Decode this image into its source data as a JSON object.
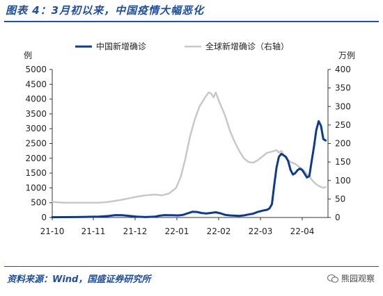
{
  "header": {
    "title": "图表 4：3月初以来，中国疫情大幅恶化"
  },
  "footer": {
    "source": "资料来源：Wind，国盛证券研究所",
    "watermark": "熊园观察"
  },
  "colors": {
    "china": "#0b3a8f",
    "global": "#c8c8c8",
    "accent": "#1f4e9a"
  },
  "chart_data": {
    "type": "line",
    "left_axis": {
      "label": "例",
      "range": [
        0,
        5000
      ],
      "ticks": [
        "0",
        "500",
        "1000",
        "1500",
        "2000",
        "2500",
        "3000",
        "3500",
        "4000",
        "4500",
        "5000"
      ]
    },
    "right_axis": {
      "label": "万例",
      "range": [
        0,
        400
      ],
      "ticks": [
        "0",
        "50",
        "100",
        "150",
        "200",
        "250",
        "300",
        "350",
        "400"
      ]
    },
    "x_ticks": [
      "21-10",
      "21-11",
      "21-12",
      "22-01",
      "22-02",
      "22-03",
      "22-04"
    ],
    "legend_position": "top",
    "series": [
      {
        "name": "中国新增确诊",
        "axis": "left",
        "points": [
          [
            0,
            10
          ],
          [
            5,
            12
          ],
          [
            10,
            15
          ],
          [
            15,
            20
          ],
          [
            20,
            30
          ],
          [
            24,
            50
          ],
          [
            27,
            80
          ],
          [
            30,
            75
          ],
          [
            33,
            55
          ],
          [
            36,
            30
          ],
          [
            40,
            15
          ],
          [
            44,
            30
          ],
          [
            46,
            60
          ],
          [
            48,
            80
          ],
          [
            51,
            75
          ],
          [
            54,
            70
          ],
          [
            56,
            90
          ],
          [
            58,
            140
          ],
          [
            60,
            195
          ],
          [
            62,
            185
          ],
          [
            64,
            150
          ],
          [
            66,
            135
          ],
          [
            68,
            155
          ],
          [
            70,
            175
          ],
          [
            72,
            140
          ],
          [
            74,
            90
          ],
          [
            76,
            70
          ],
          [
            78,
            60
          ],
          [
            80,
            55
          ],
          [
            82,
            70
          ],
          [
            84,
            100
          ],
          [
            86,
            130
          ],
          [
            88,
            190
          ],
          [
            90,
            230
          ],
          [
            92,
            260
          ],
          [
            93,
            310
          ],
          [
            94,
            450
          ],
          [
            95,
            1100
          ],
          [
            96,
            1700
          ],
          [
            97,
            2050
          ],
          [
            98,
            2150
          ],
          [
            99,
            2100
          ],
          [
            100,
            2050
          ],
          [
            101,
            1900
          ],
          [
            102,
            1600
          ],
          [
            103,
            1450
          ],
          [
            104,
            1500
          ],
          [
            105,
            1600
          ],
          [
            106,
            1650
          ],
          [
            107,
            1600
          ],
          [
            108,
            1480
          ],
          [
            109,
            1350
          ],
          [
            110,
            1400
          ],
          [
            111,
            1900
          ],
          [
            112,
            2400
          ],
          [
            113,
            2950
          ],
          [
            114,
            3250
          ],
          [
            115,
            3100
          ],
          [
            116,
            2650
          ],
          [
            117,
            2600
          ]
        ]
      },
      {
        "name": "全球新增确诊（右轴）",
        "axis": "right",
        "points": [
          [
            0,
            42
          ],
          [
            5,
            40
          ],
          [
            10,
            40
          ],
          [
            15,
            40
          ],
          [
            20,
            40
          ],
          [
            24,
            42
          ],
          [
            27,
            45
          ],
          [
            30,
            48
          ],
          [
            33,
            52
          ],
          [
            36,
            56
          ],
          [
            40,
            60
          ],
          [
            44,
            62
          ],
          [
            47,
            60
          ],
          [
            50,
            65
          ],
          [
            53,
            80
          ],
          [
            55,
            110
          ],
          [
            57,
            160
          ],
          [
            59,
            220
          ],
          [
            61,
            265
          ],
          [
            63,
            300
          ],
          [
            65,
            320
          ],
          [
            66,
            330
          ],
          [
            67,
            338
          ],
          [
            68,
            335
          ],
          [
            69,
            325
          ],
          [
            70,
            338
          ],
          [
            71,
            320
          ],
          [
            72,
            305
          ],
          [
            74,
            275
          ],
          [
            76,
            235
          ],
          [
            78,
            205
          ],
          [
            80,
            180
          ],
          [
            82,
            160
          ],
          [
            84,
            150
          ],
          [
            86,
            148
          ],
          [
            88,
            155
          ],
          [
            90,
            165
          ],
          [
            92,
            175
          ],
          [
            94,
            178
          ],
          [
            95,
            180
          ],
          [
            96,
            182
          ],
          [
            97,
            175
          ],
          [
            98,
            180
          ],
          [
            99,
            170
          ],
          [
            100,
            160
          ],
          [
            102,
            150
          ],
          [
            104,
            145
          ],
          [
            106,
            135
          ],
          [
            108,
            125
          ],
          [
            110,
            110
          ],
          [
            112,
            95
          ],
          [
            114,
            85
          ],
          [
            116,
            80
          ],
          [
            117,
            82
          ]
        ]
      }
    ]
  }
}
